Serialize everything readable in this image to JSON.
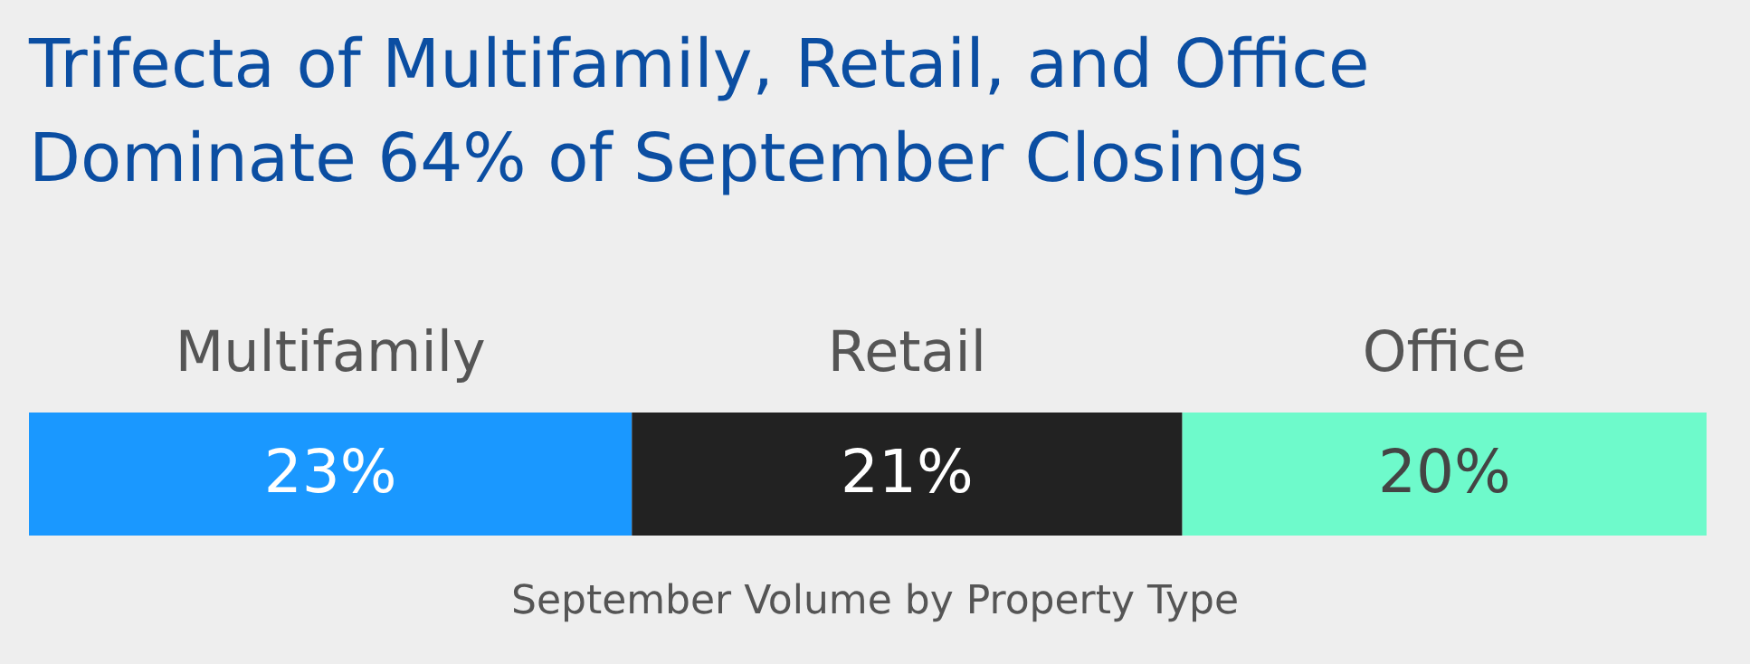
{
  "chart_data": {
    "type": "bar",
    "orientation": "horizontal",
    "stacked": true,
    "title": "Trifecta of Multifamily, Retail, and Office\nDominate 64% of September Closings",
    "annotations": [
      "September Volume by Property Type"
    ],
    "series": [
      {
        "name": "Multifamily",
        "color": "#1a98ff",
        "values": [
          23
        ],
        "value_labels": [
          "23%"
        ]
      },
      {
        "name": "Retail",
        "color": "#222222",
        "values": [
          21
        ],
        "value_labels": [
          "21%"
        ]
      },
      {
        "name": "Office",
        "color": "#6efacb",
        "values": [
          20
        ],
        "value_labels": [
          "20%"
        ]
      }
    ]
  }
}
